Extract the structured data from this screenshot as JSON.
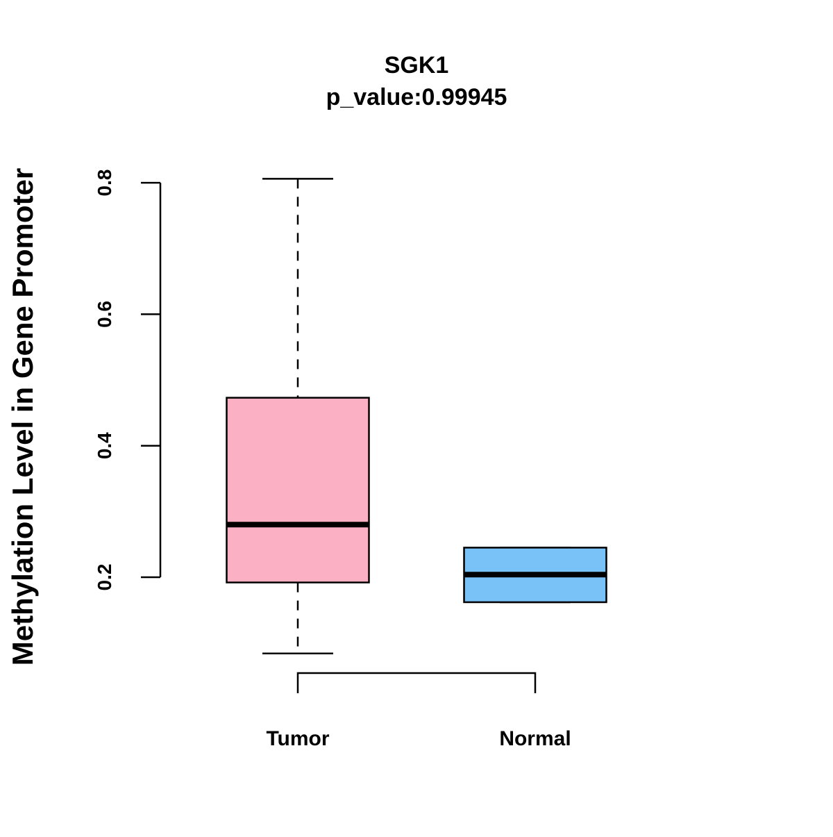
{
  "chart_data": {
    "type": "boxplot",
    "title": "SGK1",
    "subtitle": "p_value:0.99945",
    "xlabel": "",
    "ylabel": "Methylation Level in Gene Promoter",
    "ylim": [
      0.2,
      0.8
    ],
    "yticks": [
      "0.2",
      "0.4",
      "0.6",
      "0.8"
    ],
    "grid": false,
    "categories": [
      "Tumor",
      "Normal"
    ],
    "series": [
      {
        "name": "Tumor",
        "color": "#FBB1C3",
        "whisker_low": 0.084,
        "q1": 0.192,
        "median": 0.28,
        "q3": 0.473,
        "whisker_high": 0.806
      },
      {
        "name": "Normal",
        "color": "#78C2F8",
        "whisker_low": 0.162,
        "q1": 0.162,
        "median": 0.204,
        "q3": 0.245,
        "whisker_high": 0.245
      }
    ],
    "comparison_bracket": [
      "Tumor",
      "Normal"
    ]
  }
}
